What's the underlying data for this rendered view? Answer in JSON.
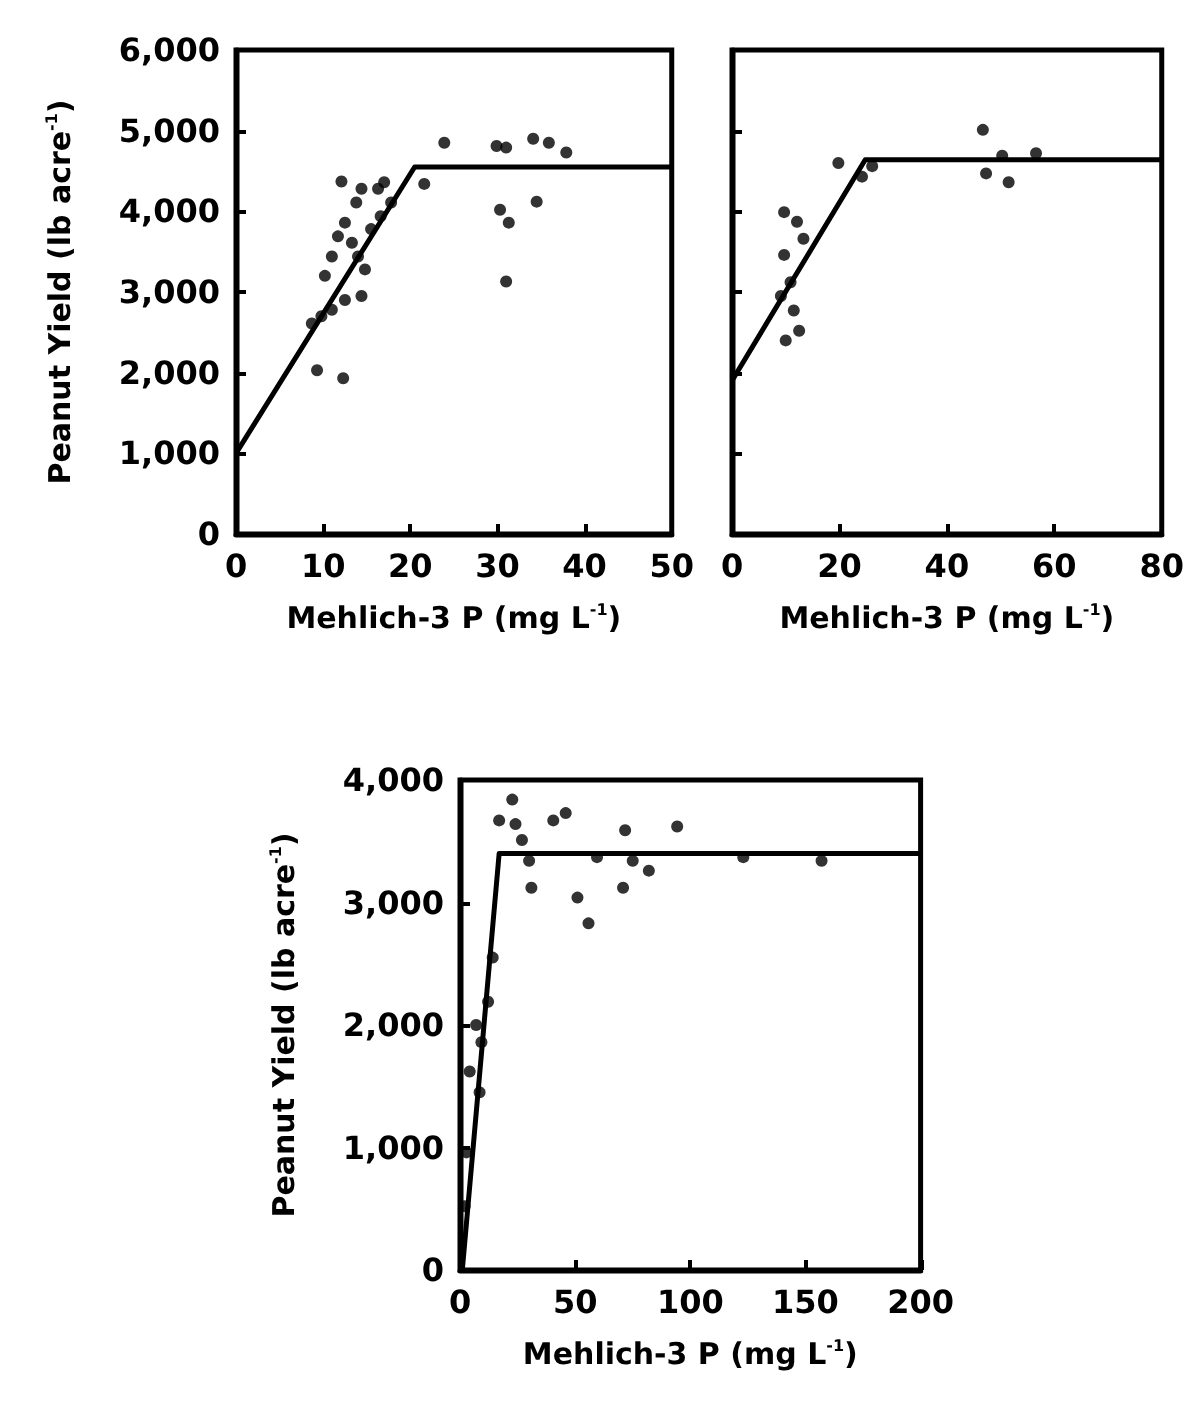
{
  "chart_data": [
    {
      "type": "scatter",
      "xlabel": "Mehlich-3 P (mg L$^{-1}$)",
      "ylabel": "Peanut Yield (lb acre$^{-1}$)",
      "xlim": [
        0,
        50
      ],
      "xticks": [
        0,
        10,
        20,
        30,
        40,
        50
      ],
      "ylim": [
        0,
        6000
      ],
      "yticks": [
        0,
        {
          "value": 1000,
          "label": "1,000"
        },
        {
          "value": 2000,
          "label": "2,000"
        },
        {
          "value": 3000,
          "label": "3,000"
        },
        {
          "value": 4000,
          "label": "4,000"
        },
        {
          "value": 5000,
          "label": "5,000"
        },
        {
          "value": 6000,
          "label": "6,000"
        }
      ],
      "series": [
        {
          "color": "#000000",
          "marker": "circle",
          "x": [
            9.3,
            12.3,
            12.1,
            14.4,
            16.3,
            17.0,
            21.6,
            23.9,
            29.9,
            31.0,
            34.1,
            35.9,
            37.9,
            34.5,
            30.3,
            31.3,
            31.0,
            10.2,
            11.0,
            11.7,
            12.5,
            13.3,
            14.0,
            14.8,
            14.4,
            12.5,
            11.0,
            9.8,
            8.7,
            15.5,
            16.6,
            17.8,
            13.8
          ],
          "values": [
            2030,
            1930,
            4370,
            4280,
            4280,
            4360,
            4340,
            4850,
            4810,
            4790,
            4900,
            4850,
            4730,
            4120,
            4020,
            3860,
            3130,
            3200,
            3440,
            3690,
            3860,
            3610,
            3440,
            3280,
            2950,
            2900,
            2780,
            2700,
            2610,
            3780,
            3940,
            4110,
            4110
          ]
        },
        {
          "type": "line",
          "marker": "none",
          "color": "#000000",
          "x": [
            0,
            20.5,
            50
          ],
          "values": [
            1000,
            4550,
            4550
          ]
        }
      ]
    },
    {
      "type": "scatter",
      "xlabel": "Mehlich-3 P (mg L$^{-1}$)",
      "xlim": [
        0,
        80
      ],
      "xticks": [
        0,
        20,
        40,
        60,
        80
      ],
      "ylim": [
        0,
        6000
      ],
      "yticks": [
        0,
        1000,
        2000,
        3000,
        4000,
        5000,
        6000
      ],
      "tick_labels": "x",
      "series": [
        {
          "color": "#000000",
          "marker": "circle",
          "x": [
            46.7,
            47.3,
            50.3,
            51.5,
            56.6,
            19.8,
            24.2,
            26.1,
            9.7,
            12.1,
            9.7,
            13.3,
            9.1,
            11.5,
            10.0,
            12.5,
            10.9
          ],
          "values": [
            5010,
            4470,
            4690,
            4360,
            4720,
            4600,
            4430,
            4560,
            3990,
            3870,
            3460,
            3660,
            2950,
            2770,
            2400,
            2520,
            3120
          ]
        },
        {
          "type": "line",
          "marker": "none",
          "color": "#000000",
          "x": [
            0,
            24.8,
            80
          ],
          "values": [
            1900,
            4640,
            4640
          ]
        }
      ]
    },
    {
      "type": "scatter",
      "xlabel": "Mehlich-3 P (mg L$^{-1}$)",
      "ylabel": "Peanut Yield (lb acre$^{-1}$)",
      "xlim": [
        0,
        200
      ],
      "xticks": [
        0,
        50,
        100,
        150,
        200
      ],
      "ylim": [
        0,
        4000
      ],
      "yticks": [
        0,
        {
          "value": 1000,
          "label": "1,000"
        },
        {
          "value": 2000,
          "label": "2,000"
        },
        {
          "value": 3000,
          "label": "3,000"
        },
        {
          "value": 4000,
          "label": "4,000"
        }
      ],
      "series": [
        {
          "color": "#000000",
          "marker": "circle",
          "x": [
            17,
            22.7,
            24.1,
            26.9,
            31,
            40.5,
            45.9,
            51,
            55.8,
            59.5,
            71.7,
            70.8,
            75,
            82,
            94.3,
            123,
            157,
            30,
            14.2,
            12.2,
            9.3,
            8.5,
            2.8,
            2,
            4.2,
            7
          ],
          "values": [
            3670,
            3840,
            3640,
            3510,
            3120,
            3670,
            3730,
            3040,
            2830,
            3370,
            3590,
            3120,
            3340,
            3260,
            3620,
            3370,
            3340,
            3340,
            2550,
            2190,
            1860,
            1450,
            960,
            520,
            1620,
            2000
          ]
        },
        {
          "type": "line",
          "marker": "none",
          "color": "#000000",
          "x": [
            1,
            17,
            200
          ],
          "values": [
            0,
            3400,
            3400
          ]
        }
      ]
    }
  ]
}
